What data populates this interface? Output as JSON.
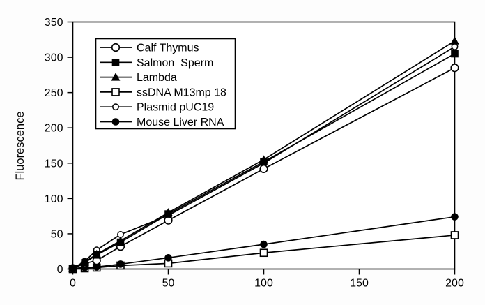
{
  "chart_data": {
    "type": "line",
    "title": "",
    "xlabel": "",
    "ylabel": "Fluorescence",
    "xlim": [
      0,
      200
    ],
    "ylim": [
      0,
      350
    ],
    "x_ticks": [
      0,
      50,
      100,
      150,
      200
    ],
    "y_ticks": [
      0,
      50,
      100,
      150,
      200,
      250,
      300,
      350
    ],
    "grid": false,
    "legend_position": "upper-left-inside",
    "line_color": "#000000",
    "background": "#ffffff",
    "x": [
      0,
      6.25,
      12.5,
      25,
      50,
      100,
      200
    ],
    "series": [
      {
        "name": "Calf Thymus",
        "marker": "open-circle",
        "values": [
          1,
          8,
          12,
          32,
          69,
          142,
          285
        ]
      },
      {
        "name": "Salmon  Sperm",
        "marker": "filled-square",
        "values": [
          1,
          9,
          20,
          38,
          78,
          152,
          305
        ]
      },
      {
        "name": "Lambda",
        "marker": "filled-triangle",
        "values": [
          1,
          10,
          21,
          40,
          80,
          155,
          323
        ]
      },
      {
        "name": "ssDNA M13mp 18",
        "marker": "open-square",
        "values": [
          0,
          1,
          2,
          5,
          8,
          23,
          48
        ]
      },
      {
        "name": "Plasmid pUC19",
        "marker": "small-open-circle",
        "values": [
          1,
          11,
          27,
          49,
          76,
          150,
          315
        ]
      },
      {
        "name": "Mouse Liver RNA",
        "marker": "filled-circle",
        "values": [
          1,
          2,
          3,
          7,
          16,
          35,
          74
        ]
      }
    ]
  }
}
